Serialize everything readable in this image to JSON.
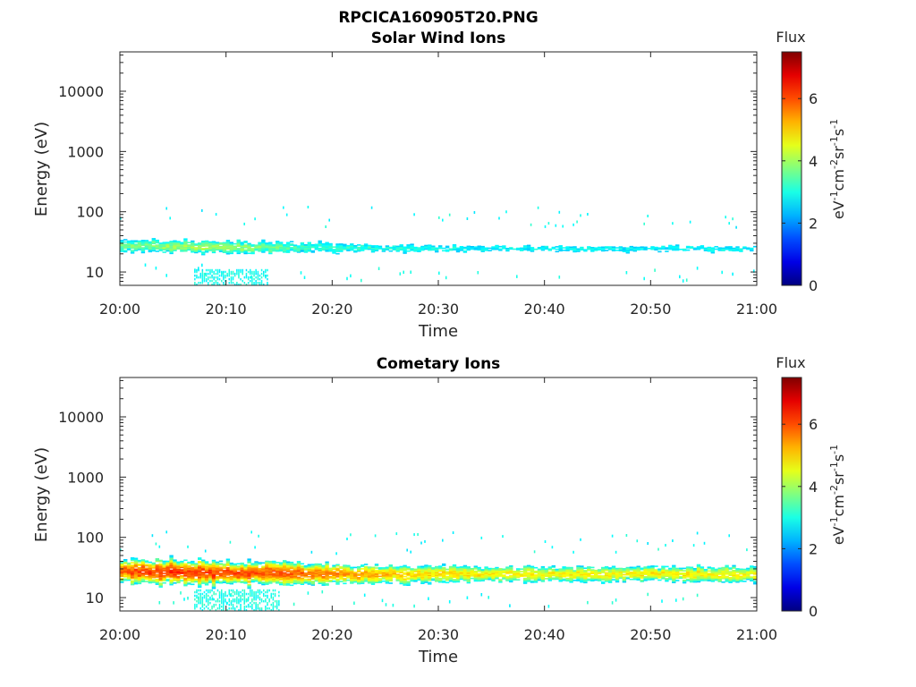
{
  "figure_title": "RPCICA160905T20.PNG",
  "chart_data": [
    {
      "type": "heatmap",
      "title": "Solar Wind Ions",
      "xlabel": "Time",
      "ylabel": "Energy (eV)",
      "yscale": "log",
      "ylim": [
        6,
        45000
      ],
      "xlim": [
        "20:00",
        "21:00"
      ],
      "xticks": [
        "20:00",
        "20:10",
        "20:20",
        "20:30",
        "20:40",
        "20:50",
        "21:00"
      ],
      "yticks": [
        "10",
        "100",
        "1000",
        "10000"
      ],
      "grid": false,
      "colorbar": {
        "title": "Flux",
        "label": "eV-1cm-2sr-1s-1",
        "ticks": [
          "0",
          "2",
          "4",
          "6"
        ],
        "range": [
          0,
          7.5
        ],
        "colormap": "jet"
      },
      "band": [
        {
          "time": "20:00",
          "energy_center": 27,
          "log_halfwidth": 0.1,
          "flux": 3.6
        },
        {
          "time": "20:05",
          "energy_center": 26,
          "log_halfwidth": 0.1,
          "flux": 3.9
        },
        {
          "time": "20:08",
          "energy_center": 26,
          "log_halfwidth": 0.1,
          "flux": 4.1
        },
        {
          "time": "20:12",
          "energy_center": 25,
          "log_halfwidth": 0.1,
          "flux": 3.8
        },
        {
          "time": "20:18",
          "energy_center": 25,
          "log_halfwidth": 0.09,
          "flux": 3.3
        },
        {
          "time": "20:25",
          "energy_center": 24,
          "log_halfwidth": 0.07,
          "flux": 3.0
        },
        {
          "time": "20:35",
          "energy_center": 24,
          "log_halfwidth": 0.06,
          "flux": 2.8
        },
        {
          "time": "20:45",
          "energy_center": 24,
          "log_halfwidth": 0.06,
          "flux": 2.8
        },
        {
          "time": "20:55",
          "energy_center": 24,
          "log_halfwidth": 0.06,
          "flux": 2.8
        },
        {
          "time": "21:00",
          "energy_center": 24,
          "log_halfwidth": 0.06,
          "flux": 2.8
        }
      ],
      "low_energy_patch": {
        "time_start": "20:07",
        "time_end": "20:14",
        "energy_min": 6,
        "energy_max": 11,
        "flux": 2.9
      }
    },
    {
      "type": "heatmap",
      "title": "Cometary Ions",
      "xlabel": "Time",
      "ylabel": "Energy (eV)",
      "yscale": "log",
      "ylim": [
        6,
        45000
      ],
      "xlim": [
        "20:00",
        "21:00"
      ],
      "xticks": [
        "20:00",
        "20:10",
        "20:20",
        "20:30",
        "20:40",
        "20:50",
        "21:00"
      ],
      "yticks": [
        "10",
        "100",
        "1000",
        "10000"
      ],
      "grid": false,
      "colorbar": {
        "title": "Flux",
        "label": "eV-1cm-2sr-1s-1",
        "ticks": [
          "0",
          "2",
          "4",
          "6"
        ],
        "range": [
          0,
          7.5
        ],
        "colormap": "jet"
      },
      "band": [
        {
          "time": "20:00",
          "energy_center": 27,
          "log_halfwidth": 0.16,
          "flux": 5.9
        },
        {
          "time": "20:05",
          "energy_center": 26,
          "log_halfwidth": 0.17,
          "flux": 6.2
        },
        {
          "time": "20:10",
          "energy_center": 25,
          "log_halfwidth": 0.17,
          "flux": 6.1
        },
        {
          "time": "20:15",
          "energy_center": 25,
          "log_halfwidth": 0.16,
          "flux": 5.9
        },
        {
          "time": "20:20",
          "energy_center": 24,
          "log_halfwidth": 0.15,
          "flux": 5.6
        },
        {
          "time": "20:25",
          "energy_center": 24,
          "log_halfwidth": 0.13,
          "flux": 5.2
        },
        {
          "time": "20:30",
          "energy_center": 24,
          "log_halfwidth": 0.12,
          "flux": 4.9
        },
        {
          "time": "20:40",
          "energy_center": 24,
          "log_halfwidth": 0.11,
          "flux": 4.7
        },
        {
          "time": "20:50",
          "energy_center": 24,
          "log_halfwidth": 0.11,
          "flux": 4.8
        },
        {
          "time": "21:00",
          "energy_center": 24,
          "log_halfwidth": 0.11,
          "flux": 4.7
        }
      ],
      "low_energy_patch": {
        "time_start": "20:07",
        "time_end": "20:15",
        "energy_min": 6,
        "energy_max": 13,
        "flux": 3.0
      }
    }
  ]
}
